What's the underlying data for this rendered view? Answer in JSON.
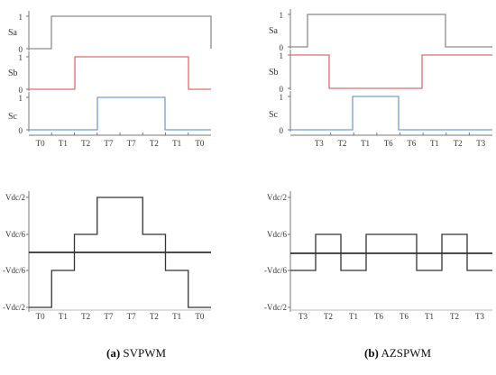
{
  "colors": {
    "sa": "#8c8c8c",
    "sb": "#e46a6a",
    "sc": "#6f9fd8",
    "axis": "#777777",
    "zero_line": "#111111",
    "output": "#333333"
  },
  "switch_panels": [
    {
      "id": "svpwm",
      "channels": [
        {
          "name": "Sa",
          "hi": "1",
          "lo": "0",
          "levels": [
            0,
            1,
            1,
            1,
            1,
            1,
            1,
            1,
            0
          ]
        },
        {
          "name": "Sb",
          "hi": "1",
          "lo": "0",
          "levels": [
            0,
            0,
            1,
            1,
            1,
            1,
            1,
            0,
            0
          ]
        },
        {
          "name": "Sc",
          "hi": "1",
          "lo": "0",
          "levels": [
            0,
            0,
            0,
            1,
            1,
            1,
            0,
            0,
            0
          ]
        }
      ],
      "segments": [
        "T0",
        "T1",
        "T2",
        "T7",
        "T7",
        "T2",
        "T1",
        "T0"
      ]
    },
    {
      "id": "azspwm",
      "channels": [
        {
          "name": "Sa",
          "hi": "1",
          "lo": "0",
          "levels": [
            0,
            1,
            1,
            1,
            1,
            1,
            1,
            0,
            0
          ]
        },
        {
          "name": "Sb",
          "hi": "1",
          "lo": "0",
          "levels": [
            1,
            1,
            0,
            0,
            0,
            0,
            1,
            1,
            1
          ]
        },
        {
          "name": "Sc",
          "hi": "1",
          "lo": "0",
          "levels": [
            0,
            0,
            0,
            1,
            1,
            0,
            0,
            0,
            0
          ]
        }
      ],
      "segments": [
        "T3",
        "T2",
        "T1",
        "T6",
        "T6",
        "T1",
        "T2",
        "T3"
      ]
    }
  ],
  "voltage_panels": [
    {
      "id": "svpwm",
      "y_labels": [
        "Vdc/2",
        "Vdc/6",
        "-Vdc/6",
        "-Vdc/2"
      ],
      "levels": [
        -3,
        -1,
        1,
        3,
        3,
        1,
        -1,
        -3
      ],
      "segments": [
        "T0",
        "T1",
        "T2",
        "T7",
        "T7",
        "T2",
        "T1",
        "T0"
      ]
    },
    {
      "id": "azspwm",
      "y_labels": [
        "Vdc/2",
        "Vdc/6",
        "-Vdc/6",
        "-Vdc/2"
      ],
      "levels": [
        -1,
        1,
        -1,
        1,
        1,
        -1,
        1,
        -1
      ],
      "segments": [
        "T3",
        "T2",
        "T1",
        "T6",
        "T6",
        "T1",
        "T2",
        "T3"
      ]
    }
  ],
  "captions": [
    {
      "tag": "(a)",
      "text": "SVPWM"
    },
    {
      "tag": "(b)",
      "text": "AZSPWM"
    }
  ]
}
